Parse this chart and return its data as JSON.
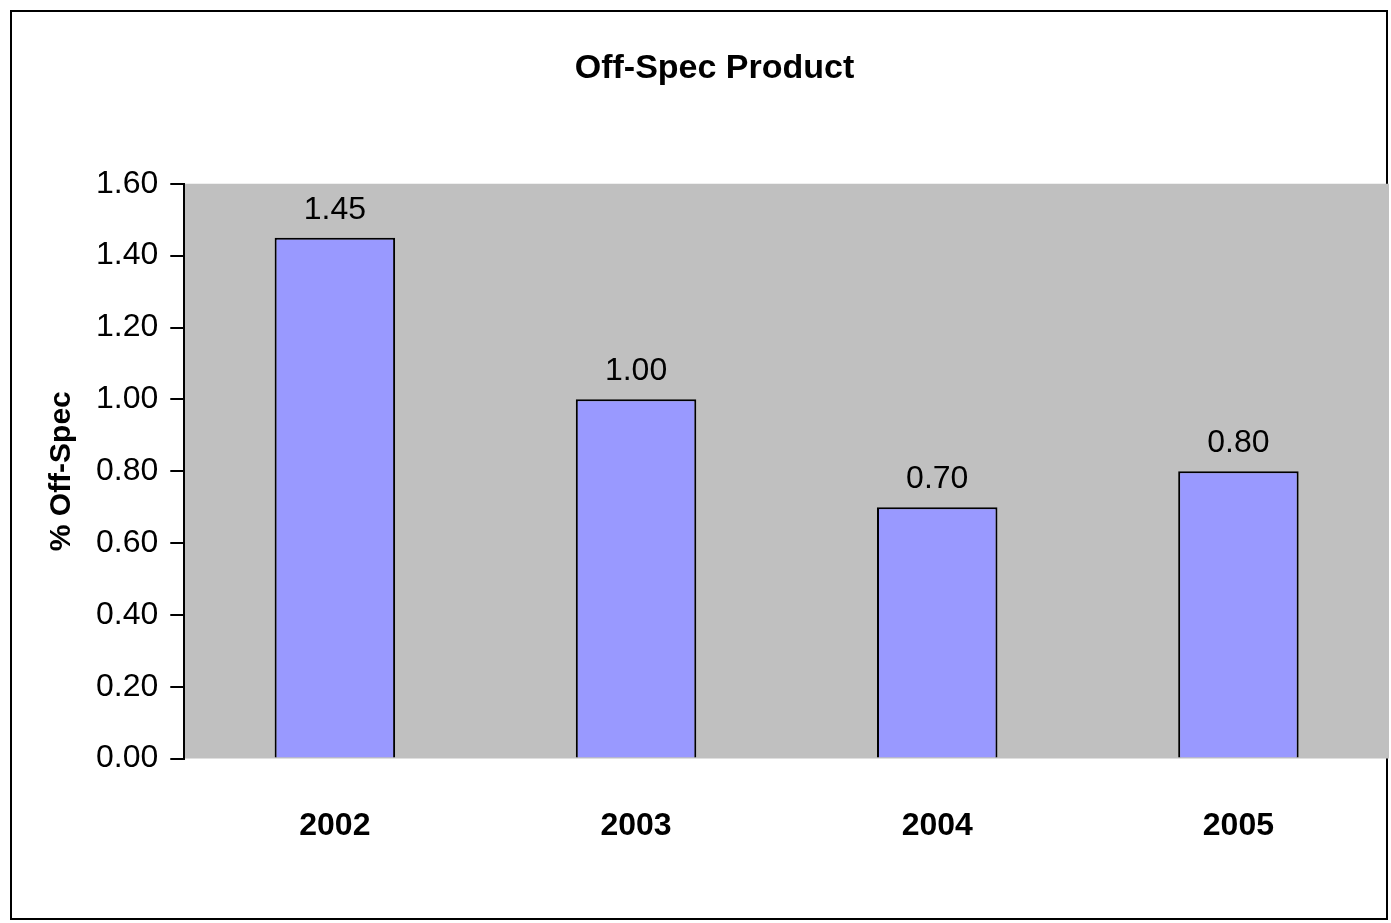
{
  "chart_data": {
    "type": "bar",
    "title": "Off-Spec Product",
    "ylabel": "% Off-Spec",
    "categories": [
      "2002",
      "2003",
      "2004",
      "2005"
    ],
    "values": [
      1.45,
      1.0,
      0.7,
      0.8
    ],
    "color": "#9999ff",
    "value_labels": [
      "1.45",
      "1.00",
      "0.70",
      "0.80"
    ],
    "ylim": [
      0,
      1.6
    ],
    "yticks": [
      {
        "value": 0,
        "label": "0.00"
      },
      {
        "value": 0.2,
        "label": "0.20"
      },
      {
        "value": 0.4,
        "label": "0.40"
      },
      {
        "value": 0.6,
        "label": "0.60"
      },
      {
        "value": 0.8,
        "label": "0.80"
      },
      {
        "value": 1.0,
        "label": "1.00"
      },
      {
        "value": 1.2,
        "label": "1.20"
      },
      {
        "value": 1.4,
        "label": "1.40"
      },
      {
        "value": 1.6,
        "label": "1.60"
      }
    ],
    "grid": false,
    "legend": false
  }
}
